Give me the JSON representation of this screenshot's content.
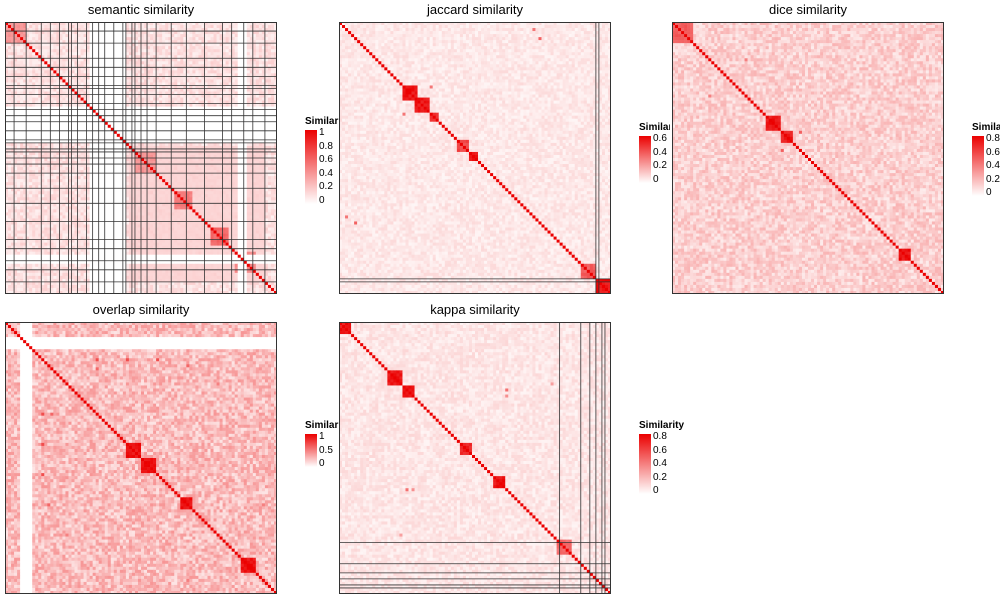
{
  "chart_data": [
    {
      "type": "heatmap",
      "title": "semantic similarity",
      "legend": {
        "title": "Similarity",
        "ticks": [
          "1",
          "0.8",
          "0.6",
          "0.4",
          "0.2",
          "0"
        ],
        "max": 1,
        "visible_chars": 7
      },
      "n_terms": 90,
      "background": 0.12,
      "blocks": [
        {
          "start": 0,
          "size": 7,
          "value": 0.45
        },
        {
          "start": 41,
          "size": 45,
          "value": 0.18
        },
        {
          "start": 43,
          "size": 7,
          "value": 0.45
        },
        {
          "start": 56,
          "size": 6,
          "value": 0.55
        },
        {
          "start": 68,
          "size": 6,
          "value": 0.65
        },
        {
          "start": 76,
          "size": 7,
          "value": 0.5
        }
      ],
      "blank_bands": [
        [
          28,
          40
        ],
        [
          77,
          80
        ]
      ],
      "cluster_lines": [
        3,
        7,
        12,
        15,
        18,
        21,
        22,
        24,
        27,
        29,
        31,
        33,
        36,
        39,
        40,
        42,
        43,
        45,
        47,
        50,
        55,
        60,
        66,
        72,
        75,
        79,
        82,
        86
      ]
    },
    {
      "type": "heatmap",
      "title": "jaccard similarity",
      "legend": {
        "title": "Similarity",
        "ticks": [
          "0.6",
          "0.4",
          "0.2",
          "0"
        ],
        "max": 0.65,
        "visible_chars": 5
      },
      "n_terms": 90,
      "background": 0.06,
      "blocks": [
        {
          "start": 21,
          "size": 5,
          "value": 0.65
        },
        {
          "start": 25,
          "size": 5,
          "value": 0.65
        },
        {
          "start": 30,
          "size": 3,
          "value": 0.6
        },
        {
          "start": 39,
          "size": 4,
          "value": 0.5
        },
        {
          "start": 43,
          "size": 3,
          "value": 0.65
        },
        {
          "start": 80,
          "size": 5,
          "value": 0.45
        },
        {
          "start": 85,
          "size": 5,
          "value": 0.65
        }
      ],
      "hotspots": [
        [
          5,
          66,
          0.4
        ],
        [
          2,
          64,
          0.35
        ],
        [
          21,
          30,
          0.35
        ]
      ],
      "blank_bands": [],
      "cluster_lines": [
        85,
        86
      ]
    },
    {
      "type": "heatmap",
      "title": "dice similarity",
      "legend": {
        "title": "Similarity",
        "ticks": [
          "0.8",
          "0.6",
          "0.4",
          "0.2",
          "0"
        ],
        "max": 0.8,
        "visible_chars": 5
      },
      "n_terms": 90,
      "background": 0.15,
      "blocks": [
        {
          "start": 0,
          "size": 7,
          "value": 0.55
        },
        {
          "start": 31,
          "size": 5,
          "value": 0.8
        },
        {
          "start": 36,
          "size": 4,
          "value": 0.75
        },
        {
          "start": 75,
          "size": 4,
          "value": 0.8
        }
      ],
      "hotspots": [
        [
          42,
          36,
          0.5
        ],
        [
          24,
          12,
          0.4
        ]
      ],
      "blank_bands": [],
      "cluster_lines": []
    },
    {
      "type": "heatmap",
      "title": "overlap similarity",
      "legend": {
        "title": "Similarity",
        "ticks": [
          "1",
          "0.5",
          "0"
        ],
        "max": 1,
        "visible_chars": 7
      },
      "n_terms": 90,
      "background": 0.26,
      "blocks": [
        {
          "start": 40,
          "size": 5,
          "value": 1
        },
        {
          "start": 45,
          "size": 5,
          "value": 1
        },
        {
          "start": 58,
          "size": 4,
          "value": 1
        },
        {
          "start": 78,
          "size": 5,
          "value": 1
        }
      ],
      "hotspots": [
        [
          12,
          30,
          0.7
        ],
        [
          12,
          40,
          0.7
        ],
        [
          12,
          50,
          0.7
        ],
        [
          14,
          60,
          0.6
        ],
        [
          30,
          15,
          0.6
        ],
        [
          70,
          20,
          0.5
        ],
        [
          85,
          60,
          0.5
        ],
        [
          63,
          78,
          0.4
        ],
        [
          65,
          80,
          0.4
        ]
      ],
      "blank_bands": [
        [
          5,
          9
        ]
      ],
      "cluster_lines": []
    },
    {
      "type": "heatmap",
      "title": "kappa similarity",
      "legend": {
        "title": "Similarity",
        "ticks": [
          "0.8",
          "0.6",
          "0.4",
          "0.2",
          "0"
        ],
        "max": 0.8,
        "visible_chars": 10
      },
      "n_terms": 90,
      "background": 0.08,
      "blocks": [
        {
          "start": 0,
          "size": 4,
          "value": 0.8
        },
        {
          "start": 16,
          "size": 5,
          "value": 0.8
        },
        {
          "start": 21,
          "size": 4,
          "value": 0.8
        },
        {
          "start": 40,
          "size": 4,
          "value": 0.75
        },
        {
          "start": 51,
          "size": 4,
          "value": 0.8
        },
        {
          "start": 72,
          "size": 5,
          "value": 0.5
        }
      ],
      "hotspots": [
        [
          55,
          22,
          0.45
        ],
        [
          24,
          55,
          0.35
        ],
        [
          70,
          20,
          0.3
        ]
      ],
      "blank_bands": [],
      "cluster_lines": [
        73,
        80,
        83,
        85,
        87,
        88
      ]
    }
  ]
}
